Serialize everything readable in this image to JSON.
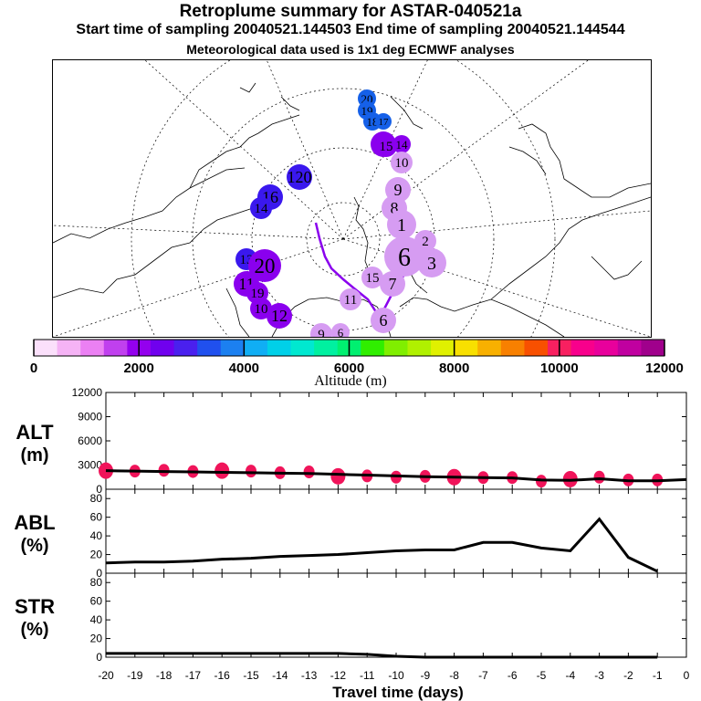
{
  "header": {
    "title": "Retroplume summary for ASTAR-040521a",
    "sampling": "Start time of sampling 20040521.144503     End time of sampling 20040521.144544",
    "met": "Meteorological data used is 1x1 deg ECMWF analyses"
  },
  "map": {
    "markers": [
      {
        "label": "20",
        "color": "#1560e8"
      },
      {
        "label": "19",
        "color": "#1560e8"
      },
      {
        "label": "18",
        "color": "#1560e8"
      },
      {
        "label": "17",
        "color": "#1560e8"
      },
      {
        "label": "16",
        "color": "#8a00ee"
      },
      {
        "label": "15",
        "color": "#8a00ee"
      },
      {
        "label": "14",
        "color": "#8a00ee"
      },
      {
        "label": "10",
        "color": "#d69cf2"
      },
      {
        "label": "9",
        "color": "#d69cf2"
      },
      {
        "label": "8",
        "color": "#d69cf2"
      },
      {
        "label": "1",
        "color": "#d69cf2"
      },
      {
        "label": "6",
        "color": "#d69cf2"
      },
      {
        "label": "2",
        "color": "#d69cf2"
      },
      {
        "label": "3",
        "color": "#d69cf2"
      },
      {
        "label": "15",
        "color": "#d69cf2"
      },
      {
        "label": "7",
        "color": "#d69cf2"
      },
      {
        "label": "11",
        "color": "#d69cf2"
      },
      {
        "label": "6",
        "color": "#d69cf2"
      },
      {
        "label": "120",
        "color": "#3a18ee"
      },
      {
        "label": "16",
        "color": "#3a18ee"
      },
      {
        "label": "14",
        "color": "#3a18ee"
      },
      {
        "label": "13",
        "color": "#3a18ee"
      },
      {
        "label": "20",
        "color": "#8a00ee"
      },
      {
        "label": "11",
        "color": "#8a00ee"
      },
      {
        "label": "19",
        "color": "#8a00ee"
      },
      {
        "label": "10",
        "color": "#8a00ee"
      },
      {
        "label": "12",
        "color": "#8a00ee"
      },
      {
        "label": "9",
        "color": "#d69cf2"
      },
      {
        "label": "6",
        "color": "#d69cf2"
      }
    ]
  },
  "colorbar": {
    "colors": [
      "#fbe0fb",
      "#f5b3f5",
      "#eb80f3",
      "#c040ee",
      "#9400ee",
      "#7000ee",
      "#4a20ee",
      "#2050ee",
      "#1c80f0",
      "#10aef4",
      "#00d0e8",
      "#00e8d0",
      "#00f0a0",
      "#00f070",
      "#30ee00",
      "#80ee00",
      "#b0f000",
      "#e0f000",
      "#f8e000",
      "#f8b000",
      "#f88000",
      "#f85000",
      "#f82060",
      "#f8008c",
      "#e8009c",
      "#c000a0",
      "#a0008c"
    ],
    "tick_labels": [
      "0",
      "2000",
      "4000",
      "6000",
      "8000",
      "10000",
      "12000"
    ],
    "label": "Altitude (m)"
  },
  "chart_data": [
    {
      "type": "line",
      "panel": "ALT",
      "ylabel": "ALT (m)",
      "ylim": [
        0,
        12000
      ],
      "yticks": [
        0,
        3000,
        6000,
        9000,
        12000
      ],
      "x": [
        -20,
        -19,
        -18,
        -17,
        -16,
        -15,
        -14,
        -13,
        -12,
        -11,
        -10,
        -9,
        -8,
        -7,
        -6,
        -5,
        -4,
        -3,
        -2,
        -1,
        0
      ],
      "values": [
        2300,
        2250,
        2200,
        2150,
        2100,
        2050,
        2000,
        1950,
        1850,
        1750,
        1650,
        1550,
        1500,
        1450,
        1400,
        1150,
        1100,
        1300,
        1050,
        1050,
        1200
      ],
      "scatter": {
        "x": [
          -20,
          -19,
          -18,
          -17,
          -16,
          -15,
          -14,
          -13,
          -12,
          -11,
          -10,
          -9,
          -8,
          -7,
          -6,
          -5,
          -4,
          -3,
          -2,
          -1
        ],
        "values": [
          2300,
          2250,
          2350,
          2200,
          2300,
          2250,
          2050,
          2150,
          1600,
          1650,
          1500,
          1600,
          1500,
          1450,
          1450,
          1000,
          1250,
          1500,
          1150,
          1150
        ],
        "color": "#f0145a"
      }
    },
    {
      "type": "line",
      "panel": "ABL",
      "ylabel": "ABL (%)",
      "ylim": [
        0,
        90
      ],
      "yticks": [
        0,
        20,
        40,
        60,
        80
      ],
      "x": [
        -20,
        -19,
        -18,
        -17,
        -16,
        -15,
        -14,
        -13,
        -12,
        -11,
        -10,
        -9,
        -8,
        -7,
        -6,
        -5,
        -4,
        -3,
        -2,
        -1
      ],
      "values": [
        11,
        12,
        12,
        13,
        15,
        16,
        18,
        19,
        20,
        22,
        24,
        25,
        25,
        33,
        33,
        27,
        24,
        58,
        17,
        2
      ]
    },
    {
      "type": "line",
      "panel": "STR",
      "ylabel": "STR (%)",
      "ylim": [
        0,
        90
      ],
      "yticks": [
        0,
        20,
        40,
        60,
        80
      ],
      "x": [
        -20,
        -19,
        -18,
        -17,
        -16,
        -15,
        -14,
        -13,
        -12,
        -11,
        -10,
        -9,
        -8,
        -7,
        -6,
        -5,
        -4,
        -3,
        -2,
        -1
      ],
      "values": [
        4,
        4,
        4,
        4,
        4,
        4,
        4,
        4,
        4,
        3,
        1,
        0,
        0,
        0,
        0,
        0,
        0,
        0,
        0,
        0
      ]
    }
  ],
  "xaxis": {
    "ticks": [
      "-20",
      "-19",
      "-18",
      "-17",
      "-16",
      "-15",
      "-14",
      "-13",
      "-12",
      "-11",
      "-10",
      "-9",
      "-8",
      "-7",
      "-6",
      "-5",
      "-4",
      "-3",
      "-2",
      "-1",
      "0"
    ],
    "label": "Travel time (days)"
  }
}
